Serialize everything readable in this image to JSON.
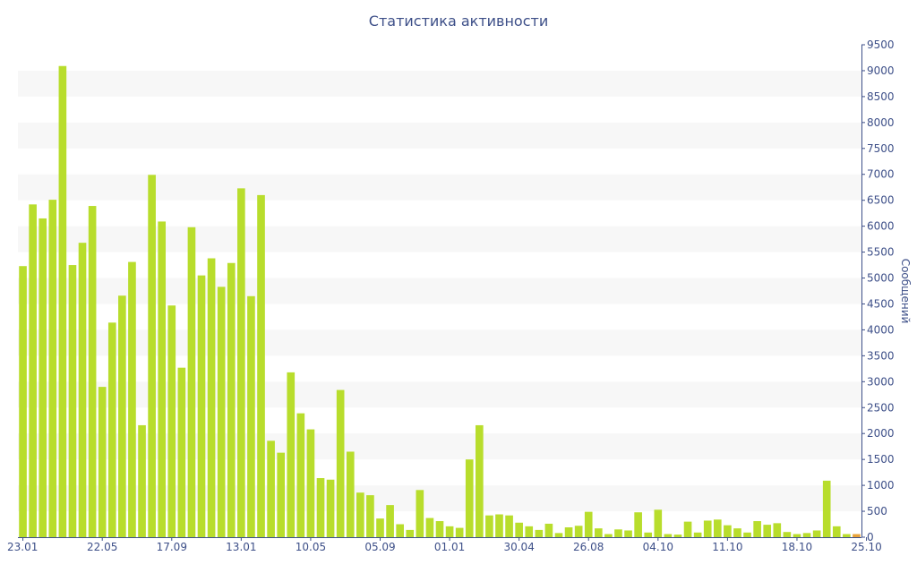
{
  "chart_data": {
    "type": "bar",
    "title": "Статистика активности",
    "ylabel": "Сообщений",
    "xlabel": "",
    "ylim": [
      0,
      9500
    ],
    "y_ticks": [
      0,
      500,
      1000,
      1500,
      2000,
      2500,
      3000,
      3500,
      4000,
      4500,
      5000,
      5500,
      6000,
      6500,
      7000,
      7500,
      8000,
      8500,
      9000,
      9500
    ],
    "y_axis_side": "right",
    "x_tick_labels": [
      {
        "label": "23.01",
        "index": 0
      },
      {
        "label": "22.05",
        "index": 8
      },
      {
        "label": "17.09",
        "index": 15
      },
      {
        "label": "13.01",
        "index": 22
      },
      {
        "label": "10.05",
        "index": 29
      },
      {
        "label": "05.09",
        "index": 36
      },
      {
        "label": "01.01",
        "index": 43
      },
      {
        "label": "30.04",
        "index": 50
      },
      {
        "label": "26.08",
        "index": 57
      },
      {
        "label": "04.10",
        "index": 64
      },
      {
        "label": "11.10",
        "index": 71
      },
      {
        "label": "18.10",
        "index": 78
      },
      {
        "label": "25.10",
        "index": 85
      }
    ],
    "values": [
      5230,
      6420,
      6150,
      6510,
      9090,
      5250,
      5680,
      6390,
      2900,
      4140,
      4660,
      5310,
      2160,
      6990,
      6090,
      4470,
      3270,
      5980,
      5050,
      5380,
      4830,
      5290,
      6730,
      4650,
      6600,
      1860,
      1630,
      3180,
      2390,
      2080,
      1140,
      1110,
      2840,
      1650,
      860,
      810,
      360,
      620,
      250,
      140,
      910,
      370,
      310,
      210,
      180,
      1500,
      2160,
      420,
      440,
      420,
      280,
      210,
      140,
      260,
      80,
      190,
      220,
      490,
      170,
      60,
      150,
      130,
      480,
      90,
      530,
      60,
      50,
      300,
      90,
      320,
      340,
      230,
      170,
      90,
      310,
      240,
      270,
      100,
      60,
      80,
      130,
      1090,
      210,
      60,
      60
    ],
    "bar_color": "#b8dd2c",
    "last_bar_color": "#e8a33a",
    "grid": "alternating horizontal bands",
    "legend": "none"
  }
}
